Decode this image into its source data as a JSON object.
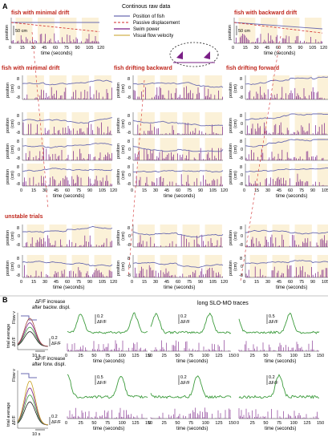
{
  "colors": {
    "fish_position": "#6a6ab0",
    "passive_displacement": "#d22a2a",
    "swim_power": "#7a1f86",
    "visual_flow": "#e8d9a8",
    "shade": "#fbf1d8",
    "section_title": "#c0281e",
    "df_trace": "#3c9b3c"
  },
  "section_a": {
    "panel_label": "A",
    "header": "Continous raw data",
    "legend": [
      {
        "label": "Position of fish",
        "kind": "fish_position"
      },
      {
        "label": "Passive displacement",
        "kind": "passive_displacement"
      },
      {
        "label": "Swim power",
        "kind": "swim_power"
      },
      {
        "label": "Visual flow velocity",
        "kind": "visual_flow"
      }
    ],
    "overview_titles": [
      "fish with minimal drift",
      "fish with backward drift"
    ],
    "column_titles": [
      "fish with minimal drift",
      "fish drifting backward",
      "fish drifting forward"
    ],
    "unstable_title": "unstable trials",
    "position_label": "position",
    "position_unit": "(cm)",
    "scale_bar": "50 cm",
    "ticks_pos": [
      "8",
      "0",
      "-8"
    ],
    "time_label": "time (seconds)",
    "time_ticks": [
      "0",
      "15",
      "30",
      "45",
      "60",
      "75",
      "90",
      "105",
      "120"
    ]
  },
  "section_b": {
    "panel_label": "B",
    "long_title": "long SLO-MO traces",
    "flow_label": "Flow v",
    "trial_avg_label": "trial average",
    "df_label": "ΔF/F",
    "inset_top_title": [
      "ΔF/F increase",
      "after backw. displ."
    ],
    "inset_bottom_title": [
      "ΔF/F increase",
      "after forw. displ."
    ],
    "inset_scale_value": "0.2",
    "inset_time_scale": "10 s",
    "time_label": "time (seconds)",
    "time_ticks": [
      "0",
      "25",
      "50",
      "75",
      "100",
      "125",
      "150"
    ],
    "scale_values_top": [
      "0.2",
      "0.2",
      "0.5"
    ],
    "scale_values_bottom": [
      "0.5",
      "0.2",
      "0.2"
    ]
  },
  "chart_data": [
    {
      "type": "line",
      "title": "fish with minimal drift",
      "xlabel": "time (seconds)",
      "ylabel": "position",
      "xlim": [
        0,
        120
      ],
      "series": [
        {
          "name": "Position of fish",
          "x": [
            0,
            120
          ],
          "y": [
            0,
            0
          ]
        },
        {
          "name": "Passive displacement",
          "x": [
            0,
            120
          ],
          "y": [
            0,
            -35
          ]
        }
      ]
    },
    {
      "type": "line",
      "title": "fish with backward drift",
      "xlabel": "time (seconds)",
      "ylabel": "position",
      "xlim": [
        0,
        120
      ],
      "series": [
        {
          "name": "Position of fish",
          "x": [
            0,
            120
          ],
          "y": [
            0,
            -40
          ]
        },
        {
          "name": "Passive displacement",
          "x": [
            0,
            120
          ],
          "y": [
            0,
            -45
          ]
        }
      ]
    },
    {
      "type": "line",
      "title": "fish with minimal drift",
      "xlabel": "time (seconds)",
      "ylabel": "position (cm)",
      "xlim": [
        0,
        120
      ],
      "ylim": [
        -8,
        8
      ],
      "series": [
        {
          "name": "Position of fish",
          "x": [
            0,
            30,
            60,
            90,
            120
          ],
          "y": [
            2,
            3,
            1,
            3,
            2
          ]
        }
      ]
    },
    {
      "type": "line",
      "title": "fish drifting backward",
      "xlabel": "time (seconds)",
      "ylabel": "position (cm)",
      "xlim": [
        0,
        120
      ],
      "ylim": [
        -8,
        8
      ],
      "series": [
        {
          "name": "Position of fish",
          "x": [
            0,
            30,
            60,
            90,
            120
          ],
          "y": [
            4,
            2,
            0,
            -2,
            -4
          ]
        }
      ]
    },
    {
      "type": "line",
      "title": "fish drifting forward",
      "xlabel": "time (seconds)",
      "ylabel": "position (cm)",
      "xlim": [
        0,
        120
      ],
      "ylim": [
        -8,
        8
      ],
      "series": [
        {
          "name": "Position of fish",
          "x": [
            0,
            30,
            60,
            90,
            120
          ],
          "y": [
            -3,
            -1,
            1,
            3,
            5
          ]
        }
      ]
    },
    {
      "type": "line",
      "title": "long SLO-MO traces",
      "xlabel": "time (seconds)",
      "ylabel": "ΔF/F",
      "xlim": [
        0,
        150
      ],
      "series": [
        {
          "name": "ΔF/F",
          "x": [
            0,
            25,
            40,
            60,
            75,
            100,
            125,
            150
          ],
          "y": [
            0.1,
            0.15,
            0.6,
            0.2,
            0.55,
            0.15,
            0.5,
            0.2
          ]
        }
      ]
    }
  ]
}
